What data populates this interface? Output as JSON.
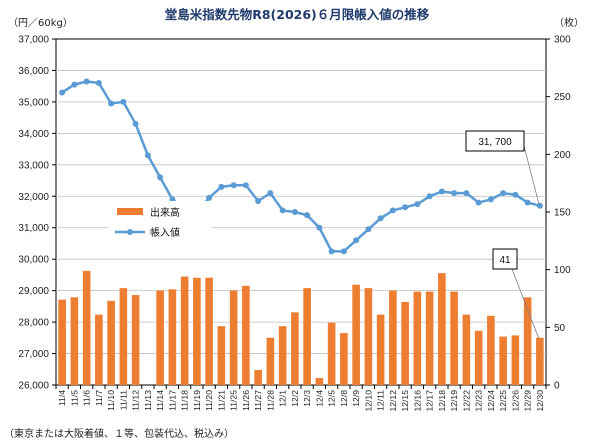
{
  "chart_data": {
    "type": "bar+line",
    "title": "堂島米指数先物R8(2026)６月限帳入値の推移",
    "left_axis_unit": "（円／60kg）",
    "right_axis_unit": "（枚）",
    "footnote": "（東京または大阪着値、１等、包装代込、税込み）",
    "left_axis": {
      "ylim": [
        26000,
        37000
      ],
      "ticks": [
        "26,000",
        "27,000",
        "28,000",
        "29,000",
        "30,000",
        "31,000",
        "32,000",
        "33,000",
        "34,000",
        "35,000",
        "36,000",
        "37,000"
      ]
    },
    "right_axis": {
      "ylim": [
        0,
        300
      ],
      "ticks": [
        "0",
        "50",
        "100",
        "150",
        "200",
        "250",
        "300"
      ]
    },
    "categories": [
      "11/4",
      "11/5",
      "11/6",
      "11/7",
      "11/10",
      "11/11",
      "11/12",
      "11/13",
      "11/14",
      "11/17",
      "11/18",
      "11/19",
      "11/20",
      "11/21",
      "11/25",
      "11/26",
      "11/27",
      "11/28",
      "12/1",
      "12/2",
      "12/3",
      "12/4",
      "12/5",
      "12/8",
      "12/9",
      "12/10",
      "12/11",
      "12/12",
      "12/15",
      "12/16",
      "12/17",
      "12/18",
      "12/19",
      "12/22",
      "12/23",
      "12/24",
      "12/25",
      "12/26",
      "12/29",
      "12/30"
    ],
    "legend": {
      "placement": "left-middle",
      "items": [
        "出来高",
        "帳入値"
      ]
    },
    "series": [
      {
        "name": "出来高",
        "type": "bar",
        "axis": "right",
        "color": "#ed7d31",
        "values": [
          74,
          76,
          99,
          61,
          73,
          84,
          78,
          0,
          82,
          83,
          94,
          93,
          93,
          51,
          82,
          86,
          13,
          41,
          51,
          63,
          84,
          6,
          54,
          45,
          87,
          84,
          61,
          82,
          72,
          81,
          81,
          97,
          81,
          61,
          47,
          60,
          42,
          43,
          76,
          41
        ]
      },
      {
        "name": "帳入値",
        "type": "line",
        "axis": "left",
        "color": "#5b9bd5",
        "values": [
          35300,
          35550,
          35650,
          35600,
          34950,
          35000,
          34300,
          33300,
          32600,
          31900,
          31600,
          31500,
          31950,
          32300,
          32350,
          32350,
          31850,
          32100,
          31550,
          31500,
          31400,
          31000,
          30250,
          30250,
          30600,
          30950,
          31300,
          31550,
          31650,
          31750,
          32000,
          32150,
          32100,
          32100,
          31800,
          31900,
          32100,
          32050,
          31800,
          31700
        ]
      }
    ],
    "callouts": [
      {
        "text": "31, 700",
        "series": "帳入値",
        "category": "12/30"
      },
      {
        "text": "41",
        "series": "出来高",
        "category": "12/30"
      }
    ]
  }
}
